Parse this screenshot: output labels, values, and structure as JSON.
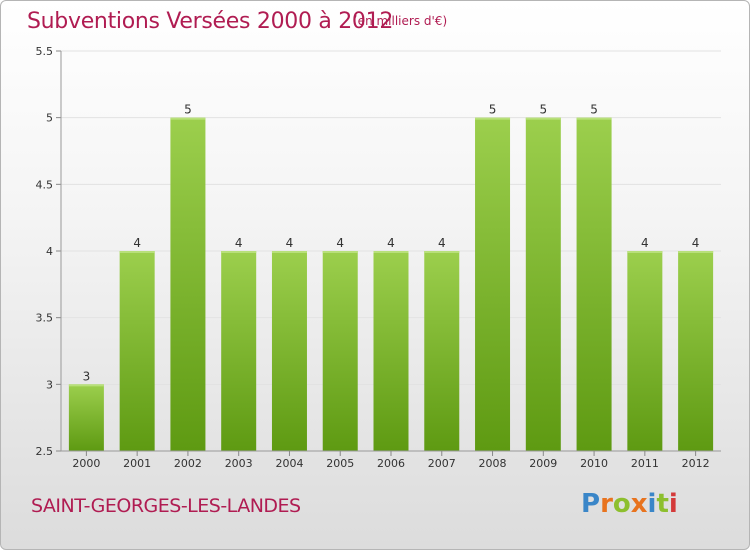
{
  "title": "Subventions Versées 2000 à 2012",
  "unit_note": "(en milliers d'€)",
  "commune": "SAINT-GEORGES-LES-LANDES",
  "logo": {
    "text": "Proxiti",
    "letter_colors": [
      "#3a86c8",
      "#e8731e",
      "#8dbf2e",
      "#e8731e",
      "#3a86c8",
      "#8dbf2e",
      "#d43a3a"
    ]
  },
  "colors": {
    "bar_top": "#9ccf4d",
    "bar_bottom": "#5e9a12",
    "title": "#b01c52"
  },
  "chart_data": {
    "type": "bar",
    "categories": [
      "2000",
      "2001",
      "2002",
      "2003",
      "2004",
      "2005",
      "2006",
      "2007",
      "2008",
      "2009",
      "2010",
      "2011",
      "2012"
    ],
    "values": [
      3,
      4,
      5,
      4,
      4,
      4,
      4,
      4,
      5,
      5,
      5,
      4,
      4
    ],
    "data_labels": [
      "3",
      "4",
      "5",
      "4",
      "4",
      "4",
      "4",
      "4",
      "5",
      "5",
      "5",
      "4",
      "4"
    ],
    "ylim": [
      2.5,
      5.5
    ],
    "yticks": [
      2.5,
      3,
      3.5,
      4,
      4.5,
      5,
      5.5
    ],
    "ytick_labels": [
      "2.5",
      "3",
      "3.5",
      "4",
      "4.5",
      "5",
      "5.5"
    ],
    "grid": true,
    "legend": "none"
  }
}
